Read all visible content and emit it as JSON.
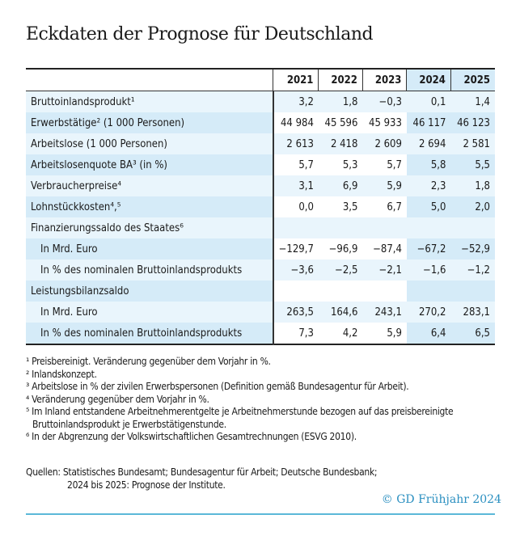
{
  "title": "Eckdaten der Prognose für Deutschland",
  "colors": {
    "accent": "#2a8fc0",
    "row_light": "#e9f5fc",
    "row_dark": "#d5ebf8"
  },
  "table": {
    "years": [
      "2021",
      "2022",
      "2023",
      "2024",
      "2025"
    ],
    "forecast_years": [
      "2024",
      "2025"
    ],
    "rows": [
      {
        "label": "Bruttoinlandsprodukt¹",
        "values": [
          "3,2",
          "1,8",
          "−0,3",
          "0,1",
          "1,4"
        ]
      },
      {
        "label": "Erwerbstätige² (1 000 Personen)",
        "values": [
          "44 984",
          "45 596",
          "45 933",
          "46 117",
          "46 123"
        ]
      },
      {
        "label": "Arbeitslose (1 000 Personen)",
        "values": [
          "2 613",
          "2 418",
          "2 609",
          "2 694",
          "2 581"
        ]
      },
      {
        "label": "Arbeitslosenquote BA³ (in %)",
        "values": [
          "5,7",
          "5,3",
          "5,7",
          "5,8",
          "5,5"
        ]
      },
      {
        "label": "Verbraucherpreise⁴",
        "values": [
          "3,1",
          "6,9",
          "5,9",
          "2,3",
          "1,8"
        ]
      },
      {
        "label": "Lohnstückkosten⁴,⁵",
        "values": [
          "0,0",
          "3,5",
          "6,7",
          "5,0",
          "2,0"
        ]
      },
      {
        "label": "Finanzierungssaldo des Staates⁶",
        "values": [
          "",
          "",
          "",
          "",
          ""
        ]
      },
      {
        "label": "In Mrd. Euro",
        "sub": true,
        "values": [
          "−129,7",
          "−96,9",
          "−87,4",
          "−67,2",
          "−52,9"
        ]
      },
      {
        "label": "In % des nominalen Bruttoinlandsprodukts",
        "sub": true,
        "values": [
          "−3,6",
          "−2,5",
          "−2,1",
          "−1,6",
          "−1,2"
        ]
      },
      {
        "label": "Leistungsbilanzsaldo",
        "values": [
          "",
          "",
          "",
          "",
          ""
        ]
      },
      {
        "label": "In Mrd. Euro",
        "sub": true,
        "values": [
          "263,5",
          "164,6",
          "243,1",
          "270,2",
          "283,1"
        ]
      },
      {
        "label": "In % des nominalen Bruttoinlandsprodukts",
        "sub": true,
        "values": [
          "7,3",
          "4,2",
          "5,9",
          "6,4",
          "6,5"
        ]
      }
    ]
  },
  "footnotes": [
    "¹ Preisbereinigt. Veränderung gegenüber dem Vorjahr in %.",
    "² Inlandskonzept.",
    "³ Arbeitslose in % der zivilen Erwerbspersonen (Definition gemäß Bundesagentur für Arbeit).",
    "⁴ Veränderung gegenüber dem Vorjahr in %.",
    "⁵ Im Inland entstandene Arbeitnehmerentgelte je Arbeitnehmerstunde bezogen auf das preisbereinigte Bruttoinlandsprodukt je Erwerbstätigenstunde.",
    "⁶ In der Abgrenzung der Volkswirtschaftlichen Gesamtrechnungen (ESVG 2010)."
  ],
  "sources": {
    "line1": "Quellen: Statistisches Bundesamt; Bundesagentur für Arbeit; Deutsche Bundesbank;",
    "line2": "2024 bis 2025: Prognose der Institute."
  },
  "copyright": "© GD Frühjahr 2024"
}
